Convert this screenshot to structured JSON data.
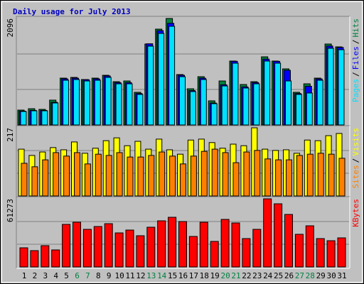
{
  "chart_data": [
    {
      "type": "bar",
      "title": "Daily usage for July 2013",
      "ylim": [
        0,
        2096
      ],
      "yticks": [
        2096
      ],
      "legend_separator": "/",
      "series": [
        {
          "name": "Hits",
          "color": "#008040",
          "values": [
            293,
            320,
            307,
            489,
            922,
            936,
            894,
            922,
            978,
            852,
            866,
            643,
            1593,
            1886,
            2096,
            992,
            712,
            950,
            475,
            866,
            1258,
            796,
            852,
            1341,
            1258,
            1104,
            643,
            810,
            922,
            1593,
            1537
          ]
        },
        {
          "name": "Files",
          "color": "#0000ff",
          "values": [
            272,
            287,
            287,
            446,
            906,
            921,
            892,
            906,
            964,
            834,
            834,
            619,
            1598,
            1856,
            2000,
            979,
            677,
            921,
            432,
            791,
            1252,
            749,
            834,
            1296,
            1252,
            1076,
            619,
            762,
            906,
            1554,
            1525
          ]
        },
        {
          "name": "Pages",
          "color": "#00e0ff",
          "values": [
            265,
            279,
            279,
            433,
            880,
            894,
            866,
            880,
            936,
            810,
            810,
            601,
            1551,
            1802,
            1942,
            950,
            657,
            894,
            419,
            768,
            1216,
            727,
            810,
            1258,
            1216,
            866,
            601,
            629,
            880,
            1509,
            1481
          ]
        }
      ]
    },
    {
      "type": "bar",
      "ylim": [
        0,
        217
      ],
      "yticks": [
        217
      ],
      "legend_separator": "/",
      "series": [
        {
          "name": "Visits",
          "color": "#ffff00",
          "values": [
            149,
            129,
            140,
            154,
            147,
            172,
            136,
            152,
            176,
            185,
            160,
            174,
            149,
            181,
            147,
            133,
            178,
            181,
            170,
            152,
            165,
            160,
            217,
            149,
            145,
            147,
            136,
            178,
            176,
            192,
            199
          ]
        },
        {
          "name": "Sites",
          "color": "#ff8000",
          "values": [
            104,
            93,
            115,
            138,
            127,
            138,
            102,
            133,
            129,
            138,
            124,
            124,
            129,
            140,
            127,
            102,
            127,
            142,
            149,
            138,
            106,
            140,
            145,
            118,
            115,
            115,
            129,
            133,
            136,
            133,
            120
          ]
        }
      ]
    },
    {
      "type": "bar",
      "ylim": [
        0,
        61273
      ],
      "yticks": [
        61273
      ],
      "categories": [
        "1",
        "2",
        "3",
        "4",
        "5",
        "6",
        "7",
        "8",
        "9",
        "10",
        "11",
        "12",
        "13",
        "14",
        "15",
        "16",
        "17",
        "18",
        "19",
        "20",
        "21",
        "22",
        "23",
        "24",
        "25",
        "26",
        "27",
        "28",
        "29",
        "30",
        "31"
      ],
      "category_colors": [
        "#000000",
        "#000000",
        "#000000",
        "#000000",
        "#000000",
        "#008040",
        "#008040",
        "#000000",
        "#000000",
        "#000000",
        "#000000",
        "#000000",
        "#008040",
        "#008040",
        "#000000",
        "#000000",
        "#000000",
        "#000000",
        "#000000",
        "#008040",
        "#008040",
        "#000000",
        "#000000",
        "#000000",
        "#000000",
        "#000000",
        "#008040",
        "#008040",
        "#000000",
        "#000000",
        "#000000"
      ],
      "series": [
        {
          "name": "KBytes",
          "color": "#ff0000",
          "values": [
            17230,
            14680,
            19150,
            15320,
            38290,
            40200,
            33820,
            36370,
            38930,
            30630,
            33180,
            28080,
            35730,
            41480,
            44670,
            40840,
            27440,
            40200,
            22970,
            42760,
            39570,
            25520,
            33820,
            61273,
            56800,
            47220,
            29360,
            37010,
            25520,
            23610,
            26160
          ]
        }
      ]
    }
  ]
}
